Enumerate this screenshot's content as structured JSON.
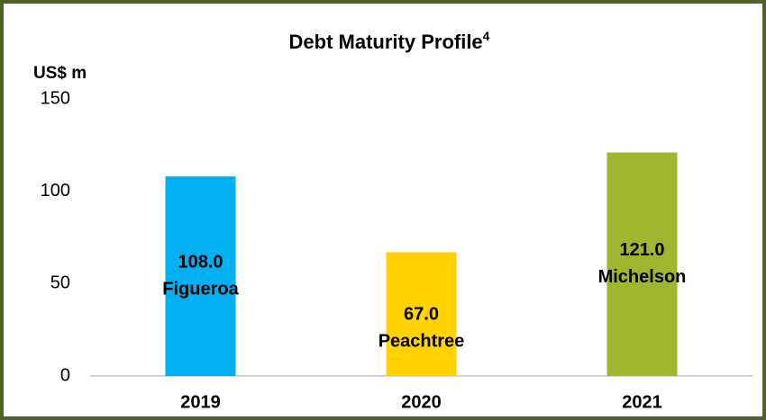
{
  "chart_data": {
    "type": "bar",
    "title": "Debt Maturity Profile",
    "title_superscript": "4",
    "y_axis_label": "US$ m",
    "categories": [
      "2019",
      "2020",
      "2021"
    ],
    "values": [
      108,
      67,
      121
    ],
    "value_labels": [
      "108.0",
      "67.0",
      "121.0"
    ],
    "labels": [
      "Figueroa",
      "Peachtree",
      "Michelson"
    ],
    "colors": [
      "#00b0f0",
      "#ffd200",
      "#a2b52e"
    ],
    "ylim": [
      0,
      150
    ],
    "yticks": [
      0,
      50,
      100,
      150
    ],
    "grid": false
  }
}
